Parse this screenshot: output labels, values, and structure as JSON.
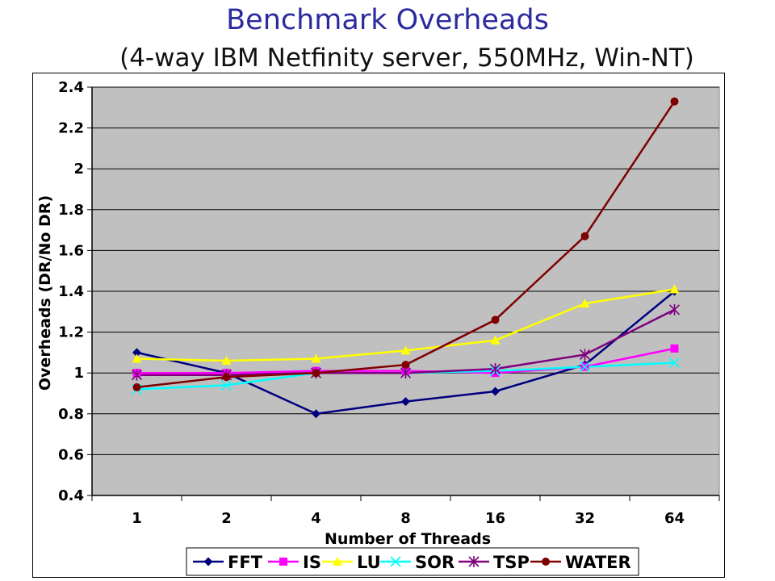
{
  "chart_data": {
    "type": "line",
    "title": "Benchmark Overheads",
    "subtitle": "(4-way IBM Netfinity server, 550MHz, Win-NT)",
    "xlabel": "Number of Threads",
    "ylabel": "Overheads (DR/No DR)",
    "categories": [
      "1",
      "2",
      "4",
      "8",
      "16",
      "32",
      "64"
    ],
    "ylim": [
      0.4,
      2.4
    ],
    "yticks": [
      "0.4",
      "0.6",
      "0.8",
      "1",
      "1.2",
      "1.4",
      "1.6",
      "1.8",
      "2",
      "2.2",
      "2.4"
    ],
    "grid": true,
    "legend_position": "bottom",
    "series": [
      {
        "name": "FFT",
        "color": "#00007f",
        "marker": "diamond",
        "values": [
          1.1,
          1.0,
          0.8,
          0.86,
          0.91,
          1.04,
          1.4
        ]
      },
      {
        "name": "IS",
        "color": "#ff00ff",
        "marker": "square",
        "values": [
          1.0,
          1.0,
          1.01,
          1.01,
          1.0,
          1.03,
          1.12
        ]
      },
      {
        "name": "LU",
        "color": "#ffff00",
        "marker": "triangle",
        "values": [
          1.07,
          1.06,
          1.07,
          1.11,
          1.16,
          1.34,
          1.41
        ]
      },
      {
        "name": "SOR",
        "color": "#00ffff",
        "marker": "x",
        "values": [
          0.92,
          0.94,
          1.0,
          1.0,
          1.01,
          1.03,
          1.05
        ]
      },
      {
        "name": "TSP",
        "color": "#7f007f",
        "marker": "star",
        "values": [
          0.99,
          0.99,
          1.0,
          1.0,
          1.02,
          1.09,
          1.31
        ]
      },
      {
        "name": "WATER",
        "color": "#7f0000",
        "marker": "circle",
        "values": [
          0.93,
          0.98,
          1.0,
          1.04,
          1.26,
          1.67,
          2.33
        ]
      }
    ]
  }
}
